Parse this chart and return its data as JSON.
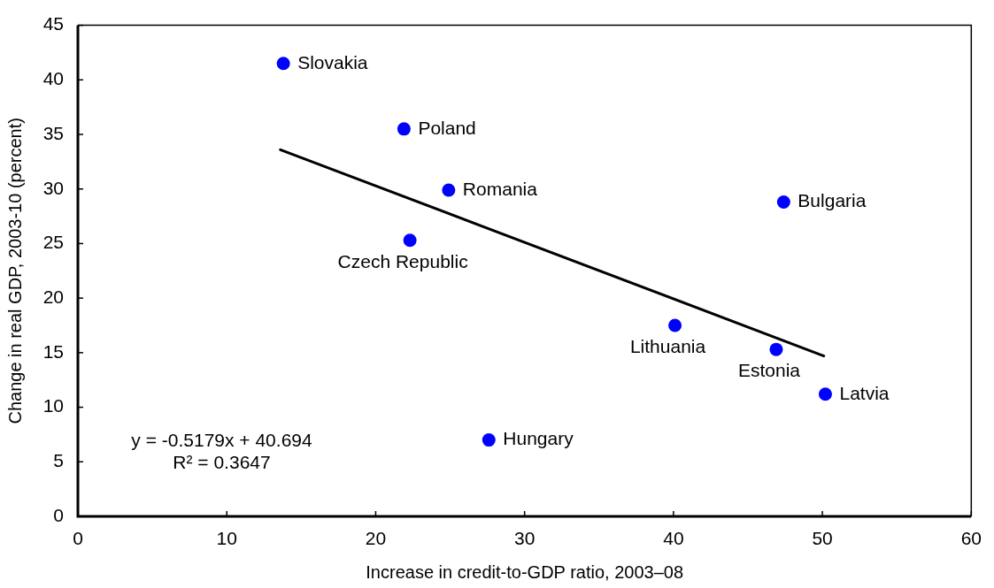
{
  "chart_data": {
    "type": "scatter",
    "xlabel": "Increase in credit-to-GDP ratio, 2003–08",
    "ylabel": "Change in real GDP, 2003-10 (percent)",
    "xlim": [
      0,
      60
    ],
    "ylim": [
      0,
      45
    ],
    "xticks": [
      0,
      10,
      20,
      30,
      40,
      50,
      60
    ],
    "yticks": [
      0,
      5,
      10,
      15,
      20,
      25,
      30,
      35,
      40,
      45
    ],
    "x": [
      13.8,
      21.9,
      24.9,
      22.3,
      47.4,
      40.1,
      46.9,
      50.2,
      27.6
    ],
    "series": [
      {
        "color": "#0000ff",
        "marker": "circle",
        "values": [
          41.5,
          35.5,
          29.9,
          25.3,
          28.8,
          17.5,
          15.3,
          11.2,
          7.0
        ]
      },
      {
        "type": "line",
        "color": "#000000",
        "x": [
          13.6,
          50.1
        ],
        "values": [
          33.6,
          14.7
        ]
      }
    ],
    "annotations": [
      {
        "text": "Slovakia",
        "x": 13.8,
        "y": 41.5
      },
      {
        "text": "Poland",
        "x": 21.9,
        "y": 35.5
      },
      {
        "text": "Romania",
        "x": 24.9,
        "y": 29.9
      },
      {
        "text": "Czech Republic",
        "x": 22.3,
        "y": 25.3
      },
      {
        "text": "Bulgaria",
        "x": 47.4,
        "y": 28.8
      },
      {
        "text": "Lithuania",
        "x": 40.1,
        "y": 17.5
      },
      {
        "text": "Estonia",
        "x": 46.9,
        "y": 15.3
      },
      {
        "text": "Latvia",
        "x": 50.2,
        "y": 11.2
      },
      {
        "text": "Hungary",
        "x": 27.6,
        "y": 7.0
      },
      "y = -0.5179x + 40.694",
      "R² = 0.3647"
    ]
  }
}
